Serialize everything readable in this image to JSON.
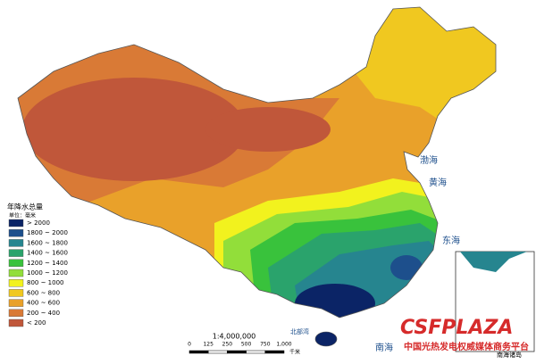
{
  "legend": {
    "title": "年降水总量",
    "unit": "单位：毫米",
    "items": [
      {
        "label": "> 2000",
        "color": "#0b2466"
      },
      {
        "label": "1800 ~ 2000",
        "color": "#1d4f8c"
      },
      {
        "label": "1600 ~ 1800",
        "color": "#26858f"
      },
      {
        "label": "1400 ~ 1600",
        "color": "#2aa36c"
      },
      {
        "label": "1200 ~ 1400",
        "color": "#39c23c"
      },
      {
        "label": "1000 ~ 1200",
        "color": "#92de3a"
      },
      {
        "label": "800 ~ 1000",
        "color": "#f2f21e"
      },
      {
        "label": "600 ~ 800",
        "color": "#f0c820"
      },
      {
        "label": "400 ~ 600",
        "color": "#e9a12a"
      },
      {
        "label": "200 ~ 400",
        "color": "#d97a36"
      },
      {
        "label": "< 200",
        "color": "#c0573a"
      }
    ]
  },
  "scale": {
    "ratio": "1:4,000,000",
    "ticks": [
      "0",
      "125",
      "250",
      "500",
      "750",
      "1,000"
    ],
    "unit": "千米"
  },
  "seas": {
    "bohai": "渤海",
    "huanghai": "黄海",
    "donghai": "东海",
    "nanhai": "南海",
    "beibuwan": "北部湾"
  },
  "inset": {
    "label": "南海诸岛"
  },
  "watermark": {
    "logo": "CSFPLAZA",
    "tagline": "中国光热发电权威媒体商务平台"
  }
}
